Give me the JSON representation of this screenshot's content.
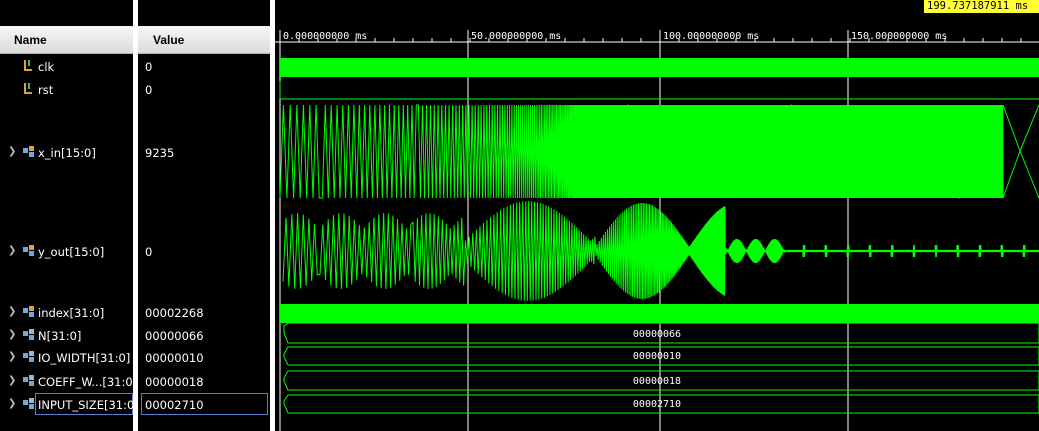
{
  "header": {
    "name_label": "Name",
    "value_label": "Value"
  },
  "cursor": {
    "time_label": "199.737187911 ms"
  },
  "timeline": {
    "ticks": [
      "0.000000000 ms",
      "50.000000000 ms",
      "100.000000000 ms",
      "150.000000000 ms"
    ]
  },
  "signals": [
    {
      "name": "clk",
      "value": "0",
      "type": "bit",
      "expandable": false
    },
    {
      "name": "rst",
      "value": "0",
      "type": "bit",
      "expandable": false
    },
    {
      "name": "x_in[15:0]",
      "value": "9235",
      "type": "analog",
      "expandable": true
    },
    {
      "name": "y_out[15:0]",
      "value": "0",
      "type": "analog",
      "expandable": true
    },
    {
      "name": "index[31:0]",
      "value": "00002268",
      "type": "bus",
      "expandable": true
    },
    {
      "name": "N[31:0]",
      "value": "00000066",
      "type": "bus",
      "expandable": true,
      "bus_label": "00000066"
    },
    {
      "name": "IO_WIDTH[31:0]",
      "value": "00000010",
      "type": "bus",
      "expandable": true,
      "bus_label": "00000010"
    },
    {
      "name": "COEFF_W...[31:0]",
      "value": "00000018",
      "type": "bus",
      "expandable": true,
      "bus_label": "00000018"
    },
    {
      "name": "INPUT_SIZE[31:0]",
      "value": "00002710",
      "type": "bus",
      "expandable": true,
      "bus_label": "00002710"
    }
  ],
  "colors": {
    "wave": "#00ff00",
    "cursor_bg": "#ffff33",
    "grid": "#ffffff"
  }
}
